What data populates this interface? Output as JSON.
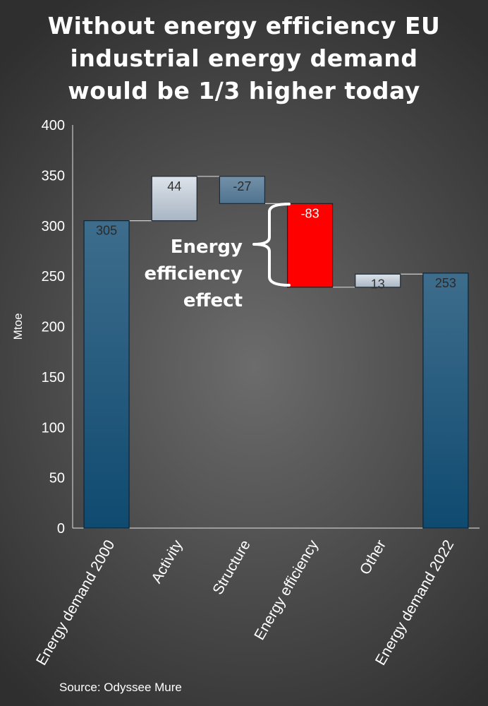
{
  "title": {
    "line1": "Without energy efficiency EU",
    "line2": "industrial energy demand",
    "line3": "would be 1/3 higher today"
  },
  "source": "Source: Odyssee Mure",
  "annotation": {
    "line1": "Energy",
    "line2": "efficiency",
    "line3": "effect"
  },
  "chart_data": {
    "type": "waterfall",
    "categories": [
      "Energy demand 2000",
      "Activity",
      "Structure",
      "Energy efficiency",
      "Other",
      "Energy demand 2022"
    ],
    "values": [
      305,
      44,
      -27,
      -83,
      13,
      253
    ],
    "labels": [
      "305",
      "44",
      "-27",
      "-83",
      "13",
      "253"
    ],
    "kinds": [
      "total",
      "delta",
      "delta",
      "delta",
      "delta",
      "total"
    ],
    "ylabel": "Mtoe",
    "ylim": [
      0,
      400
    ],
    "yticks": [
      0,
      50,
      100,
      150,
      200,
      250,
      300,
      350,
      400
    ],
    "colors": {
      "total": "#1a4f75",
      "increase": "#b9c5d0",
      "decrease": "#5a7d97",
      "highlight": "#ff0000"
    },
    "highlight_index": 3,
    "grid": false,
    "legend": "none"
  }
}
